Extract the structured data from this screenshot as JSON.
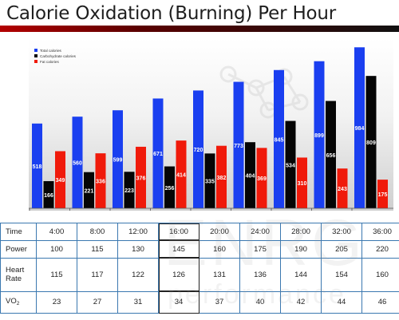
{
  "page": {
    "title": "Calorie Oxidation (Burning) Per Hour",
    "watermark_logo": "ENRG performance"
  },
  "colors": {
    "total": "#1a3ff0",
    "carbohydrate": "#050505",
    "fat": "#f01a0a",
    "title_rule": "#b30000",
    "table_border": "#3b78b0"
  },
  "chart_data": {
    "type": "bar",
    "title": "",
    "xlabel": "",
    "ylabel": "",
    "categories": [
      "4:00",
      "8:00",
      "12:00",
      "16:00",
      "20:00",
      "24:00",
      "28:00",
      "32:00",
      "36:00"
    ],
    "ylim": [
      0,
      1000
    ],
    "grid": false,
    "legend": "top-left",
    "series": [
      {
        "name": "Total calories",
        "color": "#1a3ff0",
        "values": [
          518,
          560,
          599,
          671,
          720,
          773,
          845,
          899,
          984
        ]
      },
      {
        "name": "Carbohydrate calories",
        "color": "#050505",
        "values": [
          166,
          221,
          223,
          256,
          335,
          404,
          534,
          656,
          809
        ]
      },
      {
        "name": "Fat calories",
        "color": "#f01a0a",
        "values": [
          349,
          336,
          376,
          414,
          382,
          369,
          310,
          243,
          175
        ]
      }
    ]
  },
  "table": {
    "rows": [
      {
        "label": "Time",
        "values": [
          "4:00",
          "8:00",
          "12:00",
          "16:00",
          "20:00",
          "24:00",
          "28:00",
          "32:00",
          "36:00"
        ]
      },
      {
        "label": "Power",
        "values": [
          "100",
          "115",
          "130",
          "145",
          "160",
          "175",
          "190",
          "205",
          "220"
        ]
      },
      {
        "label": "Heart Rate",
        "values": [
          "115",
          "117",
          "122",
          "126",
          "131",
          "136",
          "144",
          "154",
          "160"
        ]
      },
      {
        "label": "VO",
        "label_sub": "2",
        "values": [
          "23",
          "27",
          "31",
          "34",
          "37",
          "40",
          "42",
          "44",
          "46"
        ]
      }
    ]
  }
}
